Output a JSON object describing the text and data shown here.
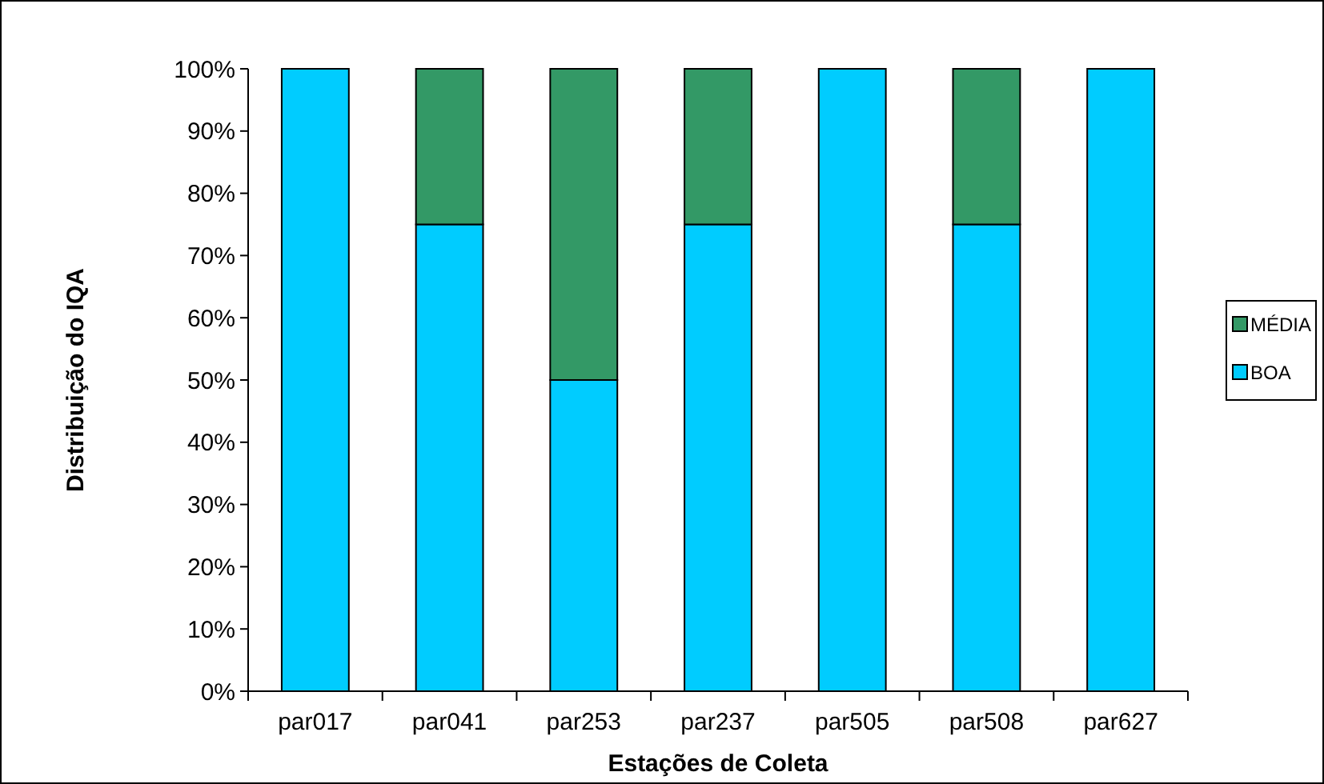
{
  "chart_data": {
    "type": "bar",
    "stacked": true,
    "xlabel": "Estações de Coleta",
    "ylabel": "Distribuição do IQA",
    "categories": [
      "par017",
      "par041",
      "par253",
      "par237",
      "par505",
      "par508",
      "par627"
    ],
    "series": [
      {
        "name": "BOA",
        "color": "#00ccff",
        "values": [
          100,
          75,
          50,
          75,
          100,
          75,
          100
        ]
      },
      {
        "name": "MÉDIA",
        "color": "#339966",
        "values": [
          0,
          25,
          50,
          25,
          0,
          25,
          0
        ]
      }
    ],
    "ylim": [
      0,
      100
    ],
    "yticks": [
      {
        "value": 0,
        "label": "0%"
      },
      {
        "value": 10,
        "label": "10%"
      },
      {
        "value": 20,
        "label": "20%"
      },
      {
        "value": 30,
        "label": "30%"
      },
      {
        "value": 40,
        "label": "40%"
      },
      {
        "value": 50,
        "label": "50%"
      },
      {
        "value": 60,
        "label": "60%"
      },
      {
        "value": 70,
        "label": "70%"
      },
      {
        "value": 80,
        "label": "80%"
      },
      {
        "value": 90,
        "label": "90%"
      },
      {
        "value": 100,
        "label": "100%"
      }
    ],
    "grid": false,
    "legend": "right"
  }
}
